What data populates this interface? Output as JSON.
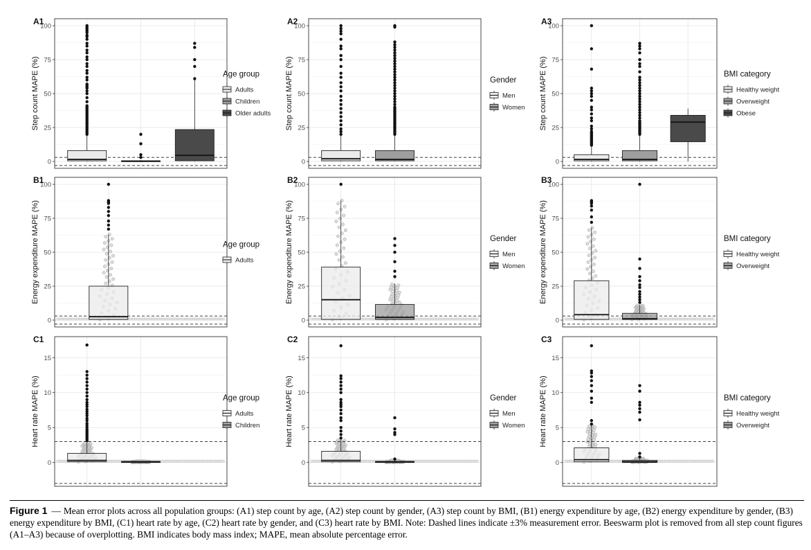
{
  "figure": {
    "caption_label": "Figure 1",
    "caption_text": "Mean error plots across all population groups: (A1) step count by age, (A2) step count by gender, (A3) step count by BMI, (B1) energy expenditure by age, (B2) energy expenditure by gender, (B3) energy expenditure by BMI, (C1) heart rate by age, (C2) heart rate by gender, and (C3) heart rate by BMI. Note: Dashed lines indicate ±3% measurement error. Beeswarm plot is removed from all step count figures (A1–A3) because of overplotting. BMI indicates body mass index; MAPE, mean absolute percentage error.",
    "colors": {
      "light": "#ebebeb",
      "mid": "#9e9e9e",
      "dark": "#4a4a4a",
      "point": "#111111",
      "bee": "#bdbdbd"
    }
  },
  "chart_data": [
    {
      "id": "A1",
      "type": "boxplot",
      "ylabel": "Step count MAPE (%)",
      "ylim": [
        -3,
        100
      ],
      "yticks": [
        0,
        25,
        50,
        75,
        100
      ],
      "reference_lines": [
        3,
        -3
      ],
      "legend_title": "Age group",
      "legend_position": "right",
      "groups": [
        {
          "name": "Adults",
          "fill": "light",
          "q1": 0.5,
          "median": 1.5,
          "q3": 8,
          "whisker_low": 0,
          "whisker_high": 19,
          "outliers": [
            20,
            21,
            22,
            23,
            24,
            25,
            26,
            27,
            28,
            29,
            30,
            31,
            32,
            33,
            34,
            35,
            36,
            37,
            38,
            39,
            40,
            41,
            44,
            47,
            50,
            52,
            54,
            55,
            56,
            57,
            60,
            62,
            65,
            67,
            70,
            72,
            75,
            77,
            80,
            82,
            85,
            87,
            90,
            92,
            93,
            95,
            96,
            97,
            98,
            99,
            100
          ]
        },
        {
          "name": "Children",
          "fill": "mid",
          "q1": 0,
          "median": 0.2,
          "q3": 0.5,
          "whisker_low": 0,
          "whisker_high": 1,
          "outliers": [
            3,
            5,
            13,
            20
          ]
        },
        {
          "name": "Older adults",
          "fill": "dark",
          "q1": 0.5,
          "median": 4.5,
          "q3": 23.5,
          "whisker_low": 0,
          "whisker_high": 60,
          "outliers": [
            61,
            70,
            75,
            84,
            87
          ]
        }
      ]
    },
    {
      "id": "A2",
      "type": "boxplot",
      "ylabel": "Step count MAPE (%)",
      "ylim": [
        -3,
        100
      ],
      "yticks": [
        0,
        25,
        50,
        75,
        100
      ],
      "reference_lines": [
        3,
        -3
      ],
      "legend_title": "Gender",
      "legend_position": "right",
      "groups": [
        {
          "name": "Men",
          "fill": "light",
          "q1": 0.5,
          "median": 2,
          "q3": 8,
          "whisker_low": 0,
          "whisker_high": 19,
          "outliers": [
            20,
            22,
            24,
            27,
            30,
            33,
            36,
            39,
            42,
            45,
            48,
            52,
            55,
            58,
            62,
            65,
            70,
            75,
            78,
            83,
            85,
            90,
            94,
            96,
            98,
            100
          ]
        },
        {
          "name": "Women",
          "fill": "mid",
          "q1": 0.5,
          "median": 1.5,
          "q3": 8,
          "whisker_low": 0,
          "whisker_high": 19,
          "outliers": [
            20,
            21,
            22,
            23,
            24,
            25,
            26,
            27,
            28,
            29,
            30,
            31,
            32,
            33,
            34,
            35,
            36,
            37,
            38,
            39,
            40,
            42,
            44,
            46,
            48,
            50,
            52,
            54,
            56,
            58,
            60,
            62,
            64,
            66,
            68,
            70,
            72,
            74,
            76,
            78,
            80,
            82,
            84,
            86,
            88,
            99,
            100
          ]
        }
      ]
    },
    {
      "id": "A3",
      "type": "boxplot",
      "ylabel": "Step count MAPE (%)",
      "ylim": [
        -3,
        100
      ],
      "yticks": [
        0,
        25,
        50,
        75,
        100
      ],
      "reference_lines": [
        3,
        -3
      ],
      "legend_title": "BMI category",
      "legend_position": "right",
      "groups": [
        {
          "name": "Healthy weight",
          "fill": "light",
          "q1": 0.5,
          "median": 1.5,
          "q3": 5,
          "whisker_low": 0,
          "whisker_high": 11,
          "outliers": [
            12,
            13,
            14,
            15,
            16,
            17,
            18,
            19,
            20,
            21,
            22,
            24,
            26,
            30,
            32,
            35,
            38,
            40,
            45,
            48,
            50,
            52,
            54,
            68,
            83,
            100
          ]
        },
        {
          "name": "Overweight",
          "fill": "mid",
          "q1": 0.5,
          "median": 1.5,
          "q3": 8,
          "whisker_low": 0,
          "whisker_high": 19,
          "outliers": [
            20,
            21,
            22,
            23,
            24,
            25,
            26,
            27,
            28,
            29,
            30,
            32,
            34,
            36,
            38,
            40,
            42,
            44,
            46,
            48,
            50,
            52,
            54,
            56,
            58,
            60,
            62,
            66,
            70,
            72,
            75,
            80,
            83,
            85,
            87
          ]
        },
        {
          "name": "Obese",
          "fill": "dark",
          "q1": 14.5,
          "median": 29,
          "q3": 34,
          "whisker_low": 0,
          "whisker_high": 39,
          "outliers": []
        }
      ]
    },
    {
      "id": "B1",
      "type": "boxplot",
      "ylabel": "Energy expenditure MAPE (%)",
      "ylim": [
        -3,
        100
      ],
      "yticks": [
        0,
        25,
        50,
        75,
        100
      ],
      "reference_lines": [
        3,
        -3
      ],
      "legend_title": "Age group",
      "legend_position": "right",
      "groups": [
        {
          "name": "Adults",
          "fill": "light",
          "q1": 0.5,
          "median": 2.5,
          "q3": 25,
          "whisker_low": 0,
          "whisker_high": 63,
          "outliers": [
            67,
            70,
            73,
            77,
            80,
            83,
            86,
            87,
            88,
            100
          ]
        }
      ]
    },
    {
      "id": "B2",
      "type": "boxplot",
      "ylabel": "Energy expenditure MAPE (%)",
      "ylim": [
        -3,
        100
      ],
      "yticks": [
        0,
        25,
        50,
        75,
        100
      ],
      "reference_lines": [
        3,
        -3
      ],
      "legend_title": "Gender",
      "legend_position": "right",
      "groups": [
        {
          "name": "Men",
          "fill": "light",
          "q1": 0.5,
          "median": 15,
          "q3": 39,
          "whisker_low": 0,
          "whisker_high": 88,
          "outliers": [
            100
          ]
        },
        {
          "name": "Women",
          "fill": "mid",
          "q1": 0.5,
          "median": 2,
          "q3": 11.5,
          "whisker_low": 0,
          "whisker_high": 27,
          "outliers": [
            32,
            36,
            43,
            50,
            55,
            60
          ]
        }
      ]
    },
    {
      "id": "B3",
      "type": "boxplot",
      "ylabel": "Energy expenditure MAPE (%)",
      "ylim": [
        -3,
        100
      ],
      "yticks": [
        0,
        25,
        50,
        75,
        100
      ],
      "reference_lines": [
        3,
        -3
      ],
      "legend_title": "BMI category",
      "legend_position": "right",
      "groups": [
        {
          "name": "Healthy weight",
          "fill": "light",
          "q1": 0.5,
          "median": 4,
          "q3": 29,
          "whisker_low": 0,
          "whisker_high": 68,
          "outliers": [
            72,
            76,
            81,
            84,
            86,
            87,
            88
          ]
        },
        {
          "name": "Overweight",
          "fill": "mid",
          "q1": 0.5,
          "median": 1,
          "q3": 5,
          "whisker_low": 0,
          "whisker_high": 11,
          "outliers": [
            13,
            15,
            17,
            19,
            21,
            24,
            26,
            29,
            32,
            38,
            45,
            100
          ]
        }
      ]
    },
    {
      "id": "C1",
      "type": "boxplot",
      "ylabel": "Heart rate MAPE (%)",
      "ylim": [
        -3,
        17
      ],
      "yticks": [
        0,
        5,
        10,
        15
      ],
      "reference_lines": [
        3,
        -3
      ],
      "legend_title": "Age group",
      "legend_position": "right",
      "groups": [
        {
          "name": "Adults",
          "fill": "light",
          "q1": 0.1,
          "median": 0.3,
          "q3": 1.3,
          "whisker_low": 0,
          "whisker_high": 2.8,
          "outliers": [
            3.1,
            3.3,
            3.5,
            3.7,
            3.9,
            4.1,
            4.3,
            4.5,
            4.7,
            5,
            5.3,
            5.6,
            6,
            6.3,
            6.7,
            7,
            7.3,
            7.6,
            8,
            8.3,
            8.6,
            9,
            9.5,
            10,
            10.5,
            11,
            11.5,
            12,
            12.5,
            13,
            16.8
          ]
        },
        {
          "name": "Children",
          "fill": "mid",
          "q1": 0,
          "median": 0.1,
          "q3": 0.15,
          "whisker_low": 0,
          "whisker_high": 0.2,
          "outliers": []
        }
      ]
    },
    {
      "id": "C2",
      "type": "boxplot",
      "ylabel": "Heart rate MAPE (%)",
      "ylim": [
        -3,
        17
      ],
      "yticks": [
        0,
        5,
        10,
        15
      ],
      "reference_lines": [
        3,
        -3
      ],
      "legend_title": "Gender",
      "legend_position": "right",
      "groups": [
        {
          "name": "Men",
          "fill": "light",
          "q1": 0.1,
          "median": 0.3,
          "q3": 1.6,
          "whisker_low": 0,
          "whisker_high": 3.3,
          "outliers": [
            3.5,
            4,
            4.5,
            5,
            6,
            6.4,
            7,
            7.5,
            8,
            8.3,
            8.6,
            9,
            10,
            10.5,
            11,
            11.5,
            12,
            12.4,
            16.7
          ]
        },
        {
          "name": "Women",
          "fill": "mid",
          "q1": 0,
          "median": 0.1,
          "q3": 0.15,
          "whisker_low": 0,
          "whisker_high": 0.3,
          "outliers": [
            0.5,
            4,
            4.3,
            4.8,
            6.4
          ]
        }
      ]
    },
    {
      "id": "C3",
      "type": "boxplot",
      "ylabel": "Heart rate MAPE (%)",
      "ylim": [
        -3,
        17
      ],
      "yticks": [
        0,
        5,
        10,
        15
      ],
      "reference_lines": [
        3,
        -3
      ],
      "legend_title": "BMI category",
      "legend_position": "right",
      "groups": [
        {
          "name": "Healthy weight",
          "fill": "light",
          "q1": 0.1,
          "median": 0.4,
          "q3": 2.1,
          "whisker_low": 0,
          "whisker_high": 5.3,
          "outliers": [
            5.5,
            6,
            8.6,
            9.2,
            10.2,
            11,
            11.7,
            12.3,
            12.8,
            13.1,
            16.7
          ]
        },
        {
          "name": "Overweight",
          "fill": "mid",
          "q1": 0,
          "median": 0.1,
          "q3": 0.3,
          "whisker_low": 0,
          "whisker_high": 0.6,
          "outliers": [
            0.8,
            1.3,
            6.1,
            7.2,
            7.7,
            8.2,
            8.6,
            10.2,
            11
          ]
        }
      ]
    }
  ]
}
